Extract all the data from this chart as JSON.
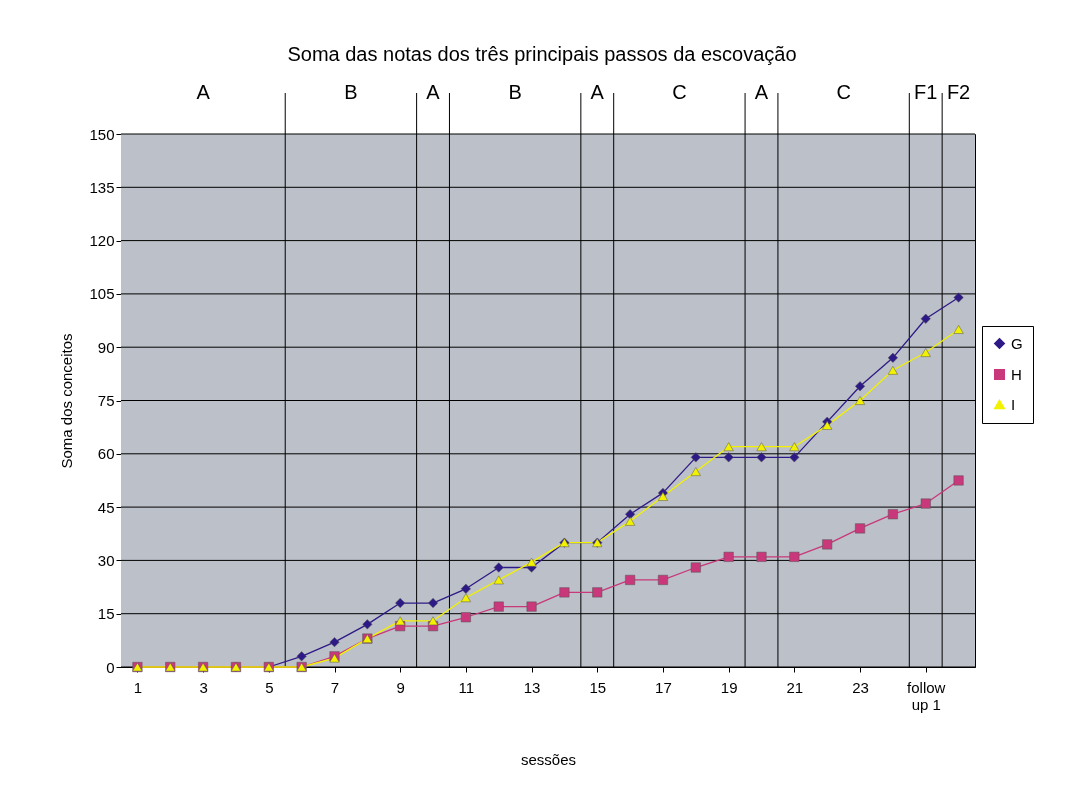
{
  "chart_data": {
    "type": "line",
    "title": "Soma das notas dos três principais passos da escovação",
    "xlabel": "sessões",
    "ylabel": "Soma dos conceitos",
    "x": [
      1,
      2,
      3,
      4,
      5,
      6,
      7,
      8,
      9,
      10,
      11,
      12,
      13,
      14,
      15,
      16,
      17,
      18,
      19,
      20,
      21,
      22,
      23,
      24,
      25,
      26
    ],
    "xlim": [
      0.5,
      26.5
    ],
    "xticks": [
      1,
      3,
      5,
      7,
      9,
      11,
      13,
      15,
      17,
      19,
      21,
      23,
      {
        "value": 25,
        "label": "follow up 1"
      }
    ],
    "ylim": [
      0,
      150
    ],
    "yticks": [
      0,
      15,
      30,
      45,
      60,
      75,
      90,
      105,
      120,
      135,
      150
    ],
    "grid": "y",
    "legend": "right",
    "series": [
      {
        "name": "G",
        "color": "#2e1a87",
        "marker": "diamond",
        "values": [
          null,
          null,
          null,
          0,
          0,
          3,
          7,
          12,
          18,
          18,
          22,
          28,
          28,
          35,
          35,
          43,
          49,
          59,
          59,
          59,
          59,
          69,
          79,
          87,
          98,
          104
        ]
      },
      {
        "name": "H",
        "color": "#c8387a",
        "marker": "square",
        "values": [
          0,
          0,
          0,
          0,
          0,
          0,
          3,
          8,
          11.5,
          11.5,
          14,
          17,
          17,
          21,
          21,
          24.5,
          24.5,
          28,
          31,
          31,
          31,
          34.5,
          39,
          43,
          46,
          52.5
        ]
      },
      {
        "name": "I",
        "color": "#f2f200",
        "marker": "triangle",
        "values": [
          0,
          0,
          0,
          0,
          0,
          0,
          2.5,
          8,
          13,
          13,
          19.5,
          24.5,
          29.5,
          35,
          35,
          41,
          48,
          55,
          62,
          62,
          62,
          68,
          75,
          83.5,
          88.5,
          95
        ]
      }
    ],
    "bands": [
      {
        "axis": "x",
        "from": 0.5,
        "to": 5.5,
        "label": "A",
        "color": "#bcc0c8"
      },
      {
        "axis": "x",
        "from": 5.5,
        "to": 9.5,
        "label": "B",
        "color": "#bcc0c8"
      },
      {
        "axis": "x",
        "from": 9.5,
        "to": 10.5,
        "label": "A",
        "color": "#bcc0c8"
      },
      {
        "axis": "x",
        "from": 10.5,
        "to": 14.5,
        "label": "B",
        "color": "#bcc0c8"
      },
      {
        "axis": "x",
        "from": 14.5,
        "to": 15.5,
        "label": "A",
        "color": "#bcc0c8"
      },
      {
        "axis": "x",
        "from": 15.5,
        "to": 19.5,
        "label": "C",
        "color": "#bcc0c8"
      },
      {
        "axis": "x",
        "from": 19.5,
        "to": 20.5,
        "label": "A",
        "color": "#bcc0c8"
      },
      {
        "axis": "x",
        "from": 20.5,
        "to": 24.5,
        "label": "C",
        "color": "#bcc0c8"
      },
      {
        "axis": "x",
        "from": 24.5,
        "to": 25.5,
        "label": "F1",
        "color": "#bcc0c8"
      },
      {
        "axis": "x",
        "from": 25.5,
        "to": 26.5,
        "label": "F2",
        "color": "#bcc0c8"
      }
    ]
  }
}
